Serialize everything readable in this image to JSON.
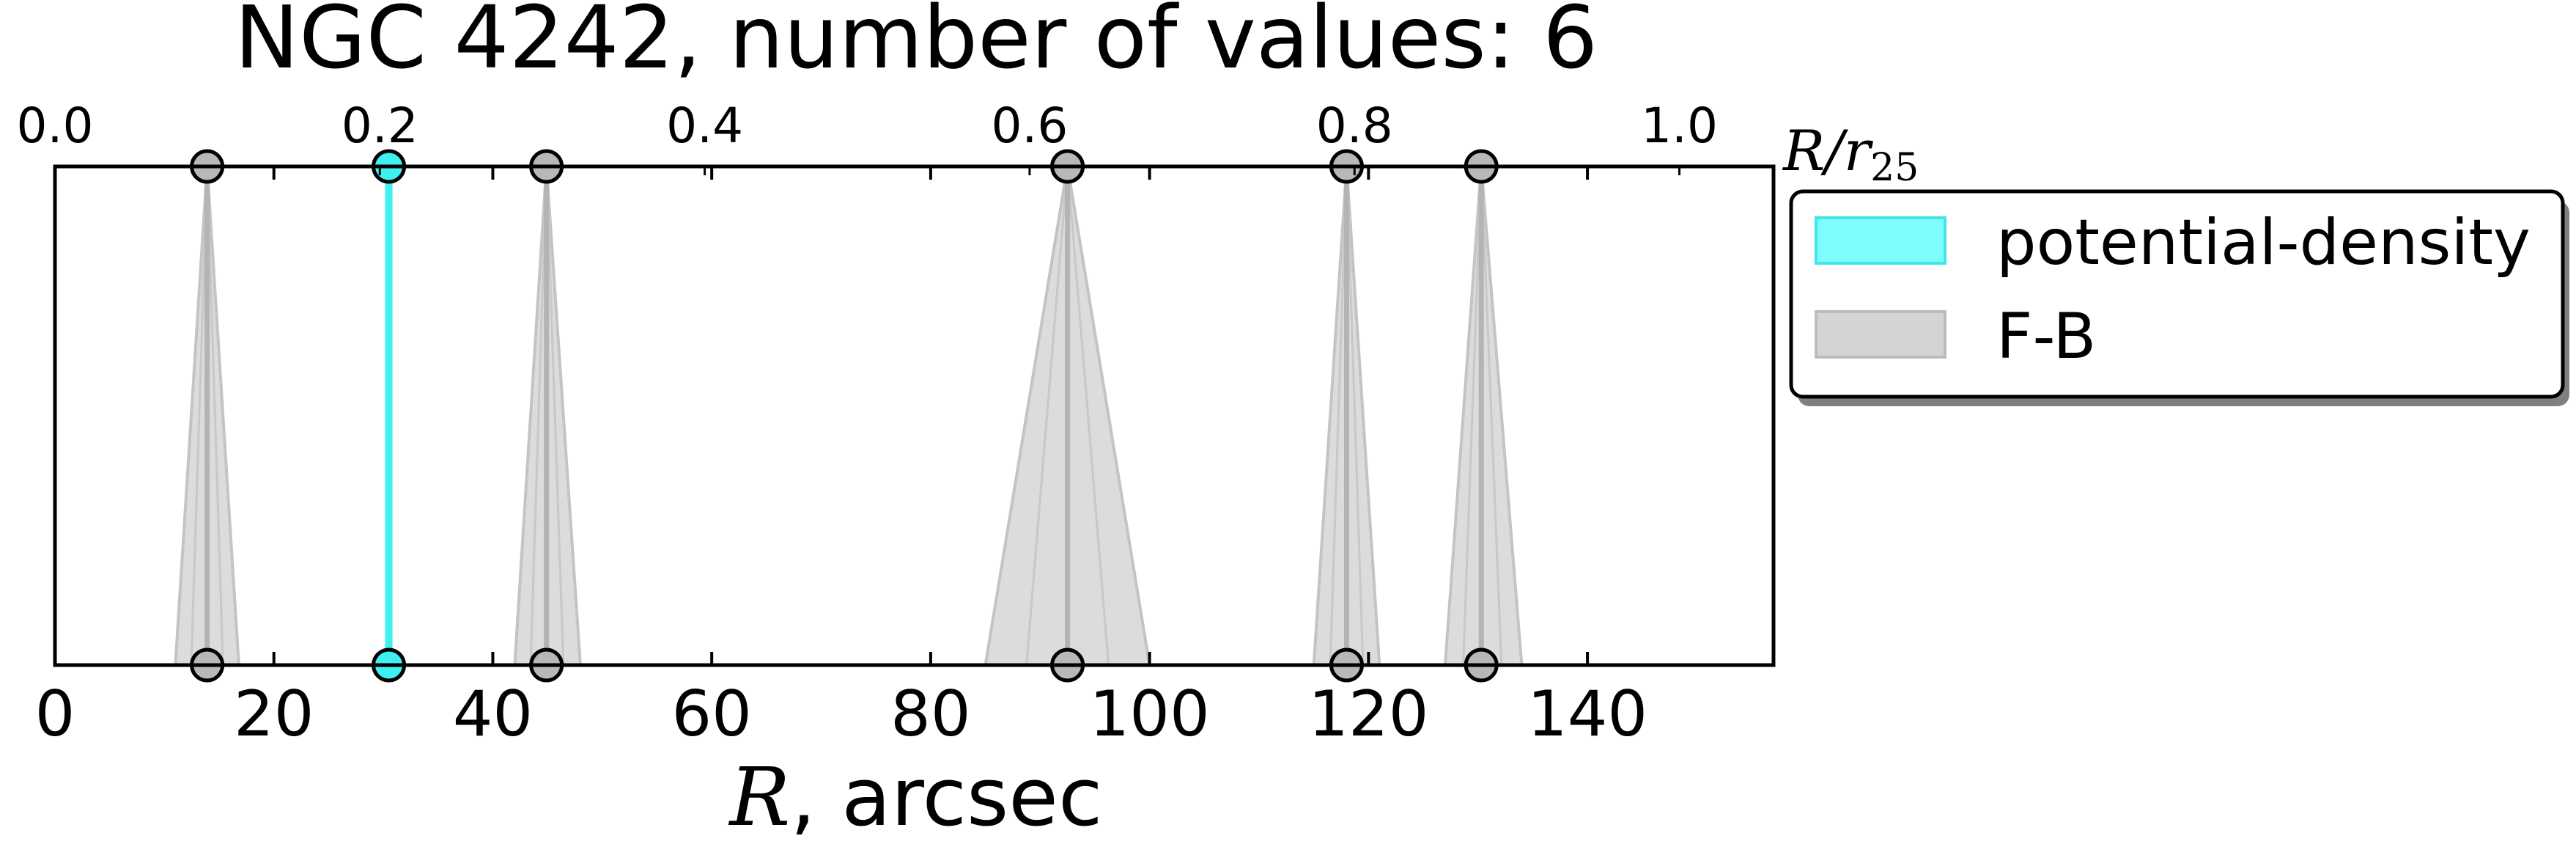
{
  "chart_data": {
    "type": "scatter",
    "title": "NGC 4242, number of values: 6",
    "xlabel": "R, arcsec",
    "xlabel_var": "R",
    "xlabel_unit": ", arcsec",
    "xlim": [
      0,
      157
    ],
    "xticks": [
      0,
      20,
      40,
      60,
      80,
      100,
      120,
      140
    ],
    "top_axis": {
      "label": "R/r25",
      "label_var": "R/r",
      "label_sub": "25",
      "ticks": [
        0.0,
        0.2,
        0.4,
        0.6,
        0.8,
        1.0
      ],
      "tick_labels": [
        "0.0",
        "0.2",
        "0.4",
        "0.6",
        "0.8",
        "1.0"
      ],
      "units_per_tick": 0.2,
      "arcsec_per_unit": 148.4
    },
    "grid": false,
    "legend": {
      "placement": "outside-right",
      "entries": [
        {
          "label": "potential-density",
          "color": "#7ffcfc",
          "edge": "#3de8e8"
        },
        {
          "label": "F-B",
          "color": "#d4d4d4",
          "edge": "#bcbcbc"
        }
      ]
    },
    "series": [
      {
        "name": "potential-density",
        "color": "#3ff0f0",
        "points": [
          {
            "x": 30.5
          }
        ]
      },
      {
        "name": "F-B",
        "color": "#b4b4b4",
        "points": [
          {
            "x": 13.9,
            "low": 11.0,
            "high": 16.8
          },
          {
            "x": 44.9,
            "low": 42.0,
            "high": 48.0
          },
          {
            "x": 92.5,
            "low": 85.0,
            "high": 100.0
          },
          {
            "x": 118.0,
            "low": 115.0,
            "high": 121.0
          },
          {
            "x": 130.3,
            "low": 127.0,
            "high": 134.0
          }
        ]
      }
    ]
  }
}
